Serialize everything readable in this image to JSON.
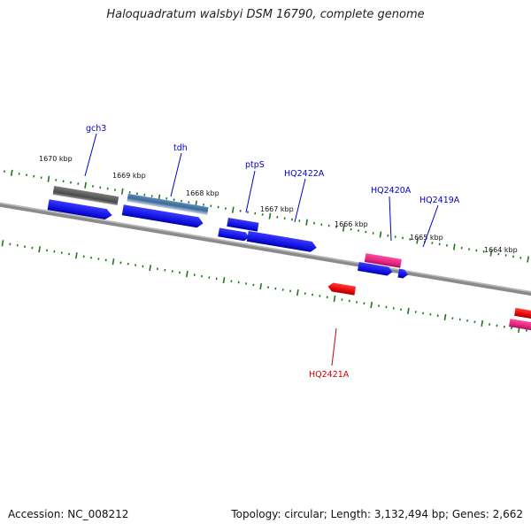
{
  "title": "Haloquadratum walsbyi DSM 16790, complete genome",
  "footer": {
    "accession": "Accession: NC_008212",
    "summary": "Topology: circular; Length: 3,132,494 bp; Genes: 2,662"
  },
  "colors": {
    "backbone": "#7a7a7a",
    "tick": "#1a7a1a",
    "cds": "#1010e0",
    "rna_red": "#e00000",
    "pink": "#e0207a",
    "gray_gene": "#5a5a5a",
    "steel_gene": "#4a7aaa",
    "label_blue": "#0000cc",
    "label_red": "#cc0000"
  },
  "kbp_labels": [
    "1670 kbp",
    "1669 kbp",
    "1668 kbp",
    "1667 kbp",
    "1666 kbp",
    "1665 kbp",
    "1664 kbp"
  ],
  "gene_labels": [
    {
      "name": "gch3",
      "color": "blue"
    },
    {
      "name": "tdh",
      "color": "blue"
    },
    {
      "name": "ptpS",
      "color": "blue"
    },
    {
      "name": "HQ2422A",
      "color": "blue"
    },
    {
      "name": "HQ2420A",
      "color": "blue"
    },
    {
      "name": "HQ2419A",
      "color": "blue"
    },
    {
      "name": "HQ2421A",
      "color": "red"
    }
  ]
}
